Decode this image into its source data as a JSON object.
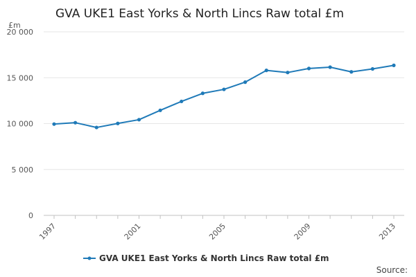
{
  "chart_data": {
    "type": "line",
    "title": "GVA UKE1 East Yorks & North Lincs Raw total £m",
    "unit_label": "£m",
    "x": [
      1997,
      1998,
      1999,
      2000,
      2001,
      2002,
      2003,
      2004,
      2005,
      2006,
      2007,
      2008,
      2009,
      2010,
      2011,
      2012,
      2013
    ],
    "x_tick_labels": [
      "1997",
      "2001",
      "2005",
      "2009",
      "2013"
    ],
    "y_ticks": [
      0,
      5000,
      10000,
      15000,
      20000
    ],
    "y_tick_labels": [
      "0",
      "5 000",
      "10 000",
      "15 000",
      "20 000"
    ],
    "ylim": [
      0,
      20000
    ],
    "xlim": [
      1997,
      2013
    ],
    "grid": true,
    "legend_position": "bottom-center",
    "series": [
      {
        "name": "GVA UKE1 East Yorks & North Lincs Raw total £m",
        "color": "#1f7ab8",
        "values": [
          9950,
          10100,
          9580,
          10020,
          10430,
          11450,
          12420,
          13300,
          13730,
          14520,
          15800,
          15570,
          16010,
          16150,
          15640,
          15960,
          16350
        ]
      }
    ]
  },
  "footer": {
    "source_label": "Source:"
  }
}
